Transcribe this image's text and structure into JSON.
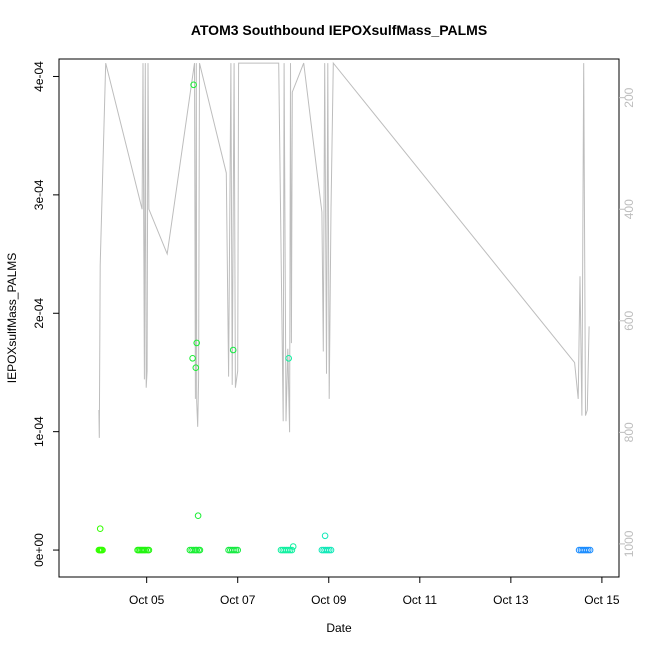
{
  "chart_data": {
    "type": "scatter",
    "title": "ATOM3 Southbound IEPOXsulfMass_PALMS",
    "xlabel": "Date",
    "ylabel": "IEPOXsulfMass_PALMS",
    "x_ticks": [
      "Oct 05",
      "Oct 07",
      "Oct 09",
      "Oct 11",
      "Oct 13",
      "Oct 15"
    ],
    "x_tick_days": [
      5,
      7,
      9,
      11,
      13,
      15
    ],
    "xlim_days": [
      3.25,
      15.2
    ],
    "y_ticks": [
      "0e+00",
      "1e-04",
      "2e-04",
      "3e-04",
      "4e-04"
    ],
    "y_tick_values": [
      0,
      0.0001,
      0.0002,
      0.0003,
      0.0004
    ],
    "ylim": [
      -1.6e-05,
      0.000408
    ],
    "right_axis": {
      "label": "",
      "ticks": [
        "200",
        "400",
        "600",
        "800",
        "1000"
      ],
      "tick_values": [
        200,
        400,
        600,
        800,
        1000
      ],
      "ylim": [
        1045,
        145
      ],
      "reversed": true,
      "color": "#bdbdbd"
    },
    "point_series": [
      {
        "color": "#33ff00",
        "points": [
          [
            3.95,
            0.0
          ],
          [
            3.97,
            0.0
          ],
          [
            3.99,
            0.0
          ],
          [
            4.01,
            0.0
          ],
          [
            4.03,
            0.0
          ],
          [
            3.98,
            1.8e-05
          ]
        ]
      },
      {
        "color": "#22f510",
        "points": [
          [
            4.8,
            0.0
          ],
          [
            4.83,
            0.0
          ],
          [
            4.86,
            0.0
          ],
          [
            4.89,
            0.0
          ],
          [
            4.92,
            0.0
          ],
          [
            4.95,
            0.0
          ],
          [
            4.98,
            0.0
          ],
          [
            5.02,
            0.0
          ],
          [
            5.05,
            0.0
          ]
        ]
      },
      {
        "color": "#19ee33",
        "points": [
          [
            5.95,
            0.0
          ],
          [
            5.99,
            0.0
          ],
          [
            6.03,
            0.0
          ],
          [
            6.07,
            0.0
          ],
          [
            6.1,
            0.0
          ],
          [
            6.14,
            0.0
          ],
          [
            6.17,
            0.0
          ],
          [
            6.03,
            0.000393
          ],
          [
            6.01,
            0.000162
          ],
          [
            6.1,
            0.000175
          ],
          [
            6.08,
            0.000154
          ],
          [
            6.13,
            2.9e-05
          ]
        ]
      },
      {
        "color": "#14ea40",
        "points": [
          [
            6.8,
            0.0
          ],
          [
            6.84,
            0.0
          ],
          [
            6.88,
            0.0
          ],
          [
            6.92,
            0.0
          ],
          [
            6.96,
            0.0
          ],
          [
            7.0,
            0.0
          ],
          [
            6.9,
            0.000169
          ]
        ]
      },
      {
        "color": "#10f0a0",
        "points": [
          [
            7.95,
            0.0
          ],
          [
            7.99,
            0.0
          ],
          [
            8.03,
            0.0
          ],
          [
            8.07,
            0.0
          ],
          [
            8.11,
            0.0
          ],
          [
            8.15,
            0.0
          ],
          [
            8.19,
            0.0
          ],
          [
            8.12,
            0.000162
          ],
          [
            8.22,
            3e-06
          ]
        ]
      },
      {
        "color": "#10e8b8",
        "points": [
          [
            8.85,
            0.0
          ],
          [
            8.89,
            0.0
          ],
          [
            8.93,
            0.0
          ],
          [
            8.97,
            0.0
          ],
          [
            9.01,
            0.0
          ],
          [
            9.05,
            0.0
          ],
          [
            8.92,
            1.2e-05
          ]
        ]
      },
      {
        "color": "#1a8cff",
        "points": [
          [
            14.5,
            0.0
          ],
          [
            14.54,
            0.0
          ],
          [
            14.58,
            0.0
          ],
          [
            14.62,
            0.0
          ],
          [
            14.66,
            0.0
          ],
          [
            14.7,
            0.0
          ],
          [
            14.74,
            0.0
          ]
        ]
      }
    ],
    "line_series": [
      {
        "name": "",
        "color": "#bdbdbd",
        "axis": "right",
        "points": [
          [
            3.95,
            760
          ],
          [
            3.96,
            810
          ],
          [
            3.98,
            500
          ],
          [
            4.1,
            138
          ],
          [
            4.9,
            400
          ],
          [
            4.92,
            138
          ],
          [
            4.95,
            705
          ],
          [
            4.97,
            138
          ],
          [
            4.99,
            720
          ],
          [
            5.01,
            690
          ],
          [
            5.03,
            138
          ],
          [
            5.05,
            400
          ],
          [
            5.45,
            480
          ],
          [
            6.05,
            138
          ],
          [
            6.07,
            740
          ],
          [
            6.09,
            138
          ],
          [
            6.1,
            745
          ],
          [
            6.12,
            790
          ],
          [
            6.14,
            705
          ],
          [
            6.16,
            138
          ],
          [
            6.75,
            335
          ],
          [
            6.8,
            700
          ],
          [
            6.85,
            138
          ],
          [
            6.88,
            715
          ],
          [
            6.92,
            138
          ],
          [
            6.95,
            720
          ],
          [
            7.0,
            690
          ],
          [
            7.02,
            138
          ],
          [
            7.9,
            138
          ],
          [
            8.0,
            780
          ],
          [
            8.02,
            138
          ],
          [
            8.06,
            780
          ],
          [
            8.1,
            650
          ],
          [
            8.14,
            800
          ],
          [
            8.16,
            138
          ],
          [
            8.18,
            640
          ],
          [
            8.2,
            190
          ],
          [
            8.45,
            138
          ],
          [
            8.85,
            405
          ],
          [
            8.88,
            655
          ],
          [
            8.91,
            138
          ],
          [
            8.95,
            695
          ],
          [
            8.98,
            138
          ],
          [
            9.01,
            740
          ],
          [
            9.05,
            400
          ],
          [
            9.1,
            138
          ],
          [
            14.4,
            675
          ],
          [
            14.48,
            740
          ],
          [
            14.52,
            520
          ],
          [
            14.56,
            770
          ],
          [
            14.6,
            138
          ],
          [
            14.64,
            770
          ],
          [
            14.68,
            760
          ],
          [
            14.72,
            610
          ]
        ]
      }
    ]
  }
}
